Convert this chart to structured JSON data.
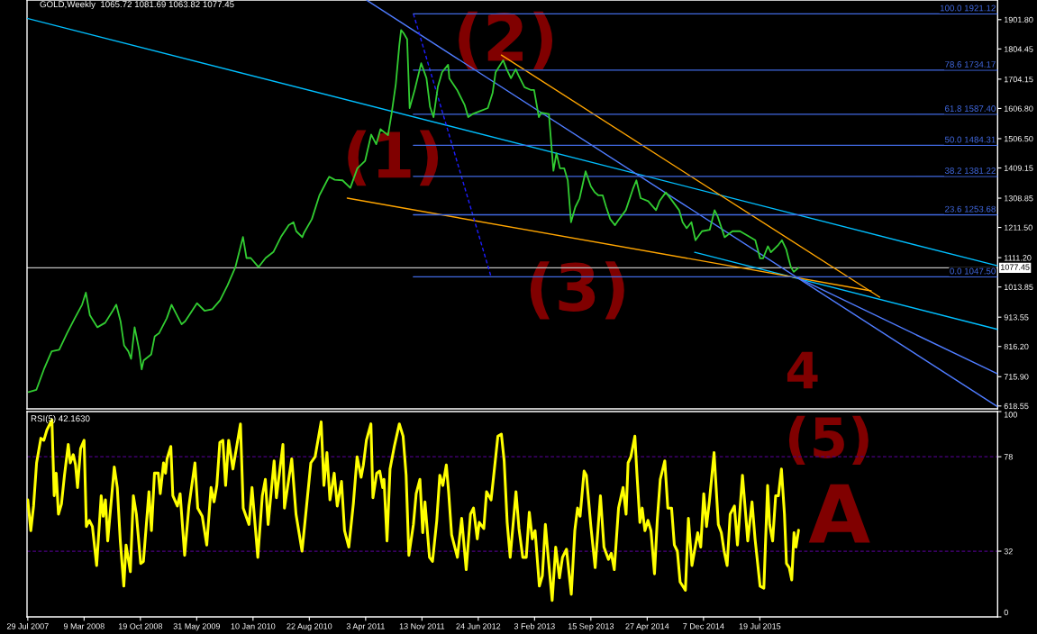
{
  "chart_data": [
    {
      "type": "line",
      "title": "GOLD,Weekly  1065.72 1081.69 1063.82 1077.45",
      "xlim": [
        "2007-07-26",
        "2018-02-19"
      ],
      "ylim": [
        609,
        1967
      ],
      "yticks": [
        618.55,
        {
          "value": 715.9,
          "label": "715.90"
        },
        {
          "value": 816.2,
          "label": "816.20"
        },
        913.55,
        1013.85,
        {
          "value": 1111.2,
          "label": "1111.20"
        },
        {
          "value": 1211.5,
          "label": "1211.50"
        },
        1308.85,
        1409.15,
        {
          "value": 1506.5,
          "label": "1506.50"
        },
        {
          "value": 1606.8,
          "label": "1606.80"
        },
        1704.15,
        1804.45,
        {
          "value": 1901.8,
          "label": "1901.80"
        }
      ],
      "tick_labels": "y",
      "series": [
        {
          "color": "#32cd32",
          "x": [
            "2007-08-01",
            "2007-09-01",
            "2007-10-01",
            "2007-11-01",
            "2007-12-01",
            "2008-01-01",
            "2008-02-01",
            "2008-03-01",
            "2008-03-16",
            "2008-04-01",
            "2008-05-01",
            "2008-06-01",
            "2008-07-01",
            "2008-07-15",
            "2008-08-01",
            "2008-08-15",
            "2008-09-01",
            "2008-09-12",
            "2008-09-26",
            "2008-10-15",
            "2008-10-24",
            "2008-11-01",
            "2008-12-01",
            "2008-12-15",
            "2009-01-01",
            "2009-02-01",
            "2009-02-20",
            "2009-03-01",
            "2009-04-01",
            "2009-04-15",
            "2009-05-01",
            "2009-06-01",
            "2009-07-01",
            "2009-08-01",
            "2009-09-01",
            "2009-10-01",
            "2009-11-01",
            "2009-12-01",
            "2009-12-15",
            "2010-01-01",
            "2010-02-01",
            "2010-03-01",
            "2010-04-01",
            "2010-05-01",
            "2010-06-01",
            "2010-06-20",
            "2010-07-01",
            "2010-07-25",
            "2010-08-01",
            "2010-09-01",
            "2010-10-01",
            "2010-11-01",
            "2010-11-09",
            "2010-12-01",
            "2011-01-01",
            "2011-02-01",
            "2011-03-01",
            "2011-04-01",
            "2011-04-25",
            "2011-05-15",
            "2011-06-01",
            "2011-07-01",
            "2011-07-15",
            "2011-08-01",
            "2011-08-15",
            "2011-08-22",
            "2011-09-01",
            "2011-09-15",
            "2011-09-25",
            "2011-10-15",
            "2011-11-10",
            "2011-12-01",
            "2011-12-15",
            "2011-12-29",
            "2012-01-15",
            "2012-02-01",
            "2012-02-25",
            "2012-03-01",
            "2012-04-01",
            "2012-05-01",
            "2012-05-15",
            "2012-06-01",
            "2012-07-01",
            "2012-08-01",
            "2012-08-20",
            "2012-09-01",
            "2012-10-01",
            "2012-10-15",
            "2012-11-01",
            "2012-11-20",
            "2012-12-01",
            "2012-12-25",
            "2013-01-20",
            "2013-02-01",
            "2013-02-20",
            "2013-03-01",
            "2013-04-01",
            "2013-04-19",
            "2013-05-01",
            "2013-05-15",
            "2013-06-01",
            "2013-06-15",
            "2013-06-28",
            "2013-07-15",
            "2013-08-01",
            "2013-08-25",
            "2013-09-15",
            "2013-10-01",
            "2013-10-15",
            "2013-11-01",
            "2013-11-15",
            "2013-12-01",
            "2013-12-20",
            "2014-01-01",
            "2014-02-01",
            "2014-03-01",
            "2014-03-15",
            "2014-04-01",
            "2014-05-01",
            "2014-06-01",
            "2014-06-15",
            "2014-07-10",
            "2014-08-01",
            "2014-09-01",
            "2014-09-15",
            "2014-10-01",
            "2014-10-20",
            "2014-11-05",
            "2014-12-01",
            "2015-01-01",
            "2015-01-20",
            "2015-02-01",
            "2015-03-01",
            "2015-04-01",
            "2015-05-01",
            "2015-06-01",
            "2015-07-01",
            "2015-07-20",
            "2015-08-01",
            "2015-08-20",
            "2015-09-01",
            "2015-10-01",
            "2015-10-15",
            "2015-11-01",
            "2015-11-10",
            "2015-11-20",
            "2015-12-01",
            "2015-12-20"
          ],
          "values": [
            665,
            672,
            740,
            800,
            805,
            860,
            910,
            955,
            995,
            920,
            880,
            895,
            935,
            955,
            900,
            820,
            800,
            775,
            880,
            800,
            740,
            770,
            790,
            850,
            860,
            910,
            955,
            940,
            890,
            900,
            920,
            960,
            935,
            940,
            970,
            1020,
            1080,
            1180,
            1110,
            1110,
            1080,
            1110,
            1130,
            1180,
            1219,
            1229,
            1199,
            1179,
            1194,
            1239,
            1318,
            1368,
            1380,
            1370,
            1368,
            1343,
            1408,
            1433,
            1520,
            1488,
            1538,
            1518,
            1588,
            1688,
            1817,
            1867,
            1857,
            1837,
            1608,
            1668,
            1757,
            1707,
            1613,
            1578,
            1678,
            1727,
            1752,
            1707,
            1668,
            1618,
            1578,
            1588,
            1598,
            1608,
            1658,
            1727,
            1767,
            1737,
            1707,
            1737,
            1717,
            1677,
            1668,
            1668,
            1578,
            1593,
            1588,
            1400,
            1458,
            1408,
            1408,
            1368,
            1229,
            1279,
            1308,
            1398,
            1348,
            1328,
            1318,
            1318,
            1279,
            1239,
            1219,
            1234,
            1269,
            1339,
            1368,
            1309,
            1299,
            1269,
            1299,
            1328,
            1304,
            1269,
            1229,
            1209,
            1229,
            1169,
            1199,
            1204,
            1269,
            1249,
            1179,
            1199,
            1199,
            1184,
            1169,
            1109,
            1109,
            1149,
            1129,
            1154,
            1169,
            1139,
            1109,
            1079,
            1064,
            1077.45
          ]
        },
        {
          "color": "#00bfff",
          "x": [
            "2007-07-26",
            "2018-02-19"
          ],
          "values": [
            1906,
            1084
          ]
        },
        {
          "color": "#00bfff",
          "x": [
            "2014-11-02",
            "2018-02-19"
          ],
          "values": [
            1129,
            873
          ]
        },
        {
          "color": "#ffa500",
          "x": [
            "2012-09-24",
            "2016-11-07"
          ],
          "values": [
            1784,
            980
          ]
        },
        {
          "color": "#ffa500",
          "x": [
            "2011-01-20",
            "2016-10-04"
          ],
          "values": [
            1309,
            1001
          ]
        },
        {
          "color": "#4f7cff",
          "x": [
            "2011-04-08",
            "2018-02-19"
          ],
          "values": [
            1966,
            616
          ]
        },
        {
          "color": "#4f7cff",
          "x": [
            "2015-12-06",
            "2018-02-19"
          ],
          "values": [
            1048,
            725
          ]
        },
        {
          "color": "#1e1eff",
          "line_style": "dashed",
          "x": [
            "2011-10-10",
            "2012-08-14"
          ],
          "values": [
            1921.12,
            1047.5
          ]
        },
        {
          "name": "100.0 1921.12",
          "color": "#4169e1",
          "x": [
            "2011-10-10",
            "2018-02-19"
          ],
          "values": [
            1921.12,
            1921.12
          ]
        },
        {
          "name": "78.6 1734.17",
          "color": "#4169e1",
          "x": [
            "2011-10-10",
            "2018-02-19"
          ],
          "values": [
            1734.17,
            1734.17
          ]
        },
        {
          "name": "61.8 1587.40",
          "color": "#4169e1",
          "x": [
            "2011-10-10",
            "2018-02-19"
          ],
          "values": [
            1587.4,
            1587.4
          ]
        },
        {
          "name": "50.0 1484.31",
          "color": "#4169e1",
          "x": [
            "2011-10-10",
            "2018-02-19"
          ],
          "values": [
            1484.31,
            1484.31
          ]
        },
        {
          "name": "38.2 1381.22",
          "color": "#4169e1",
          "x": [
            "2011-10-10",
            "2018-02-19"
          ],
          "values": [
            1381.22,
            1381.22
          ]
        },
        {
          "name": "23.6 1253.68",
          "color": "#4169e1",
          "x": [
            "2011-10-10",
            "2018-02-19"
          ],
          "values": [
            1253.68,
            1253.68
          ]
        },
        {
          "name": "0.0 1047.50",
          "color": "#4169e1",
          "x": [
            "2011-10-10",
            "2018-02-19"
          ],
          "values": [
            1047.5,
            1047.5
          ]
        }
      ],
      "ref_lines": [
        {
          "axis": "y",
          "value": 1077.45,
          "label": "1077.45",
          "color": "#c0c0c0"
        }
      ],
      "annotations": [
        "(1)",
        "(2)",
        "(3)",
        "4"
      ]
    },
    {
      "type": "line",
      "title": "RSI(5) 42.1630",
      "xlim": [
        "2007-07-26",
        "2018-02-19"
      ],
      "ylim": [
        0,
        100
      ],
      "xticks": [
        {
          "value": "2007-07-29",
          "label": "29 Jul 2007"
        },
        {
          "value": "2008-03-09",
          "label": "9 Mar 2008"
        },
        {
          "value": "2008-10-19",
          "label": "19 Oct 2008"
        },
        {
          "value": "2009-05-31",
          "label": "31 May 2009"
        },
        {
          "value": "2010-01-10",
          "label": "10 Jan 2010"
        },
        {
          "value": "2010-08-22",
          "label": "22 Aug 2010"
        },
        {
          "value": "2011-04-03",
          "label": "3 Apr 2011"
        },
        {
          "value": "2011-11-13",
          "label": "13 Nov 2011"
        },
        {
          "value": "2012-06-24",
          "label": "24 Jun 2012"
        },
        {
          "value": "2013-02-03",
          "label": "3 Feb 2013"
        },
        {
          "value": "2013-09-15",
          "label": "15 Sep 2013"
        },
        {
          "value": "2014-04-27",
          "label": "27 Apr 2014"
        },
        {
          "value": "2014-12-07",
          "label": "7 Dec 2014"
        },
        {
          "value": "2015-07-19",
          "label": "19 Jul 2015"
        }
      ],
      "yticks": [
        0,
        32,
        78,
        100
      ],
      "series": [
        {
          "color": "#ffff00",
          "x": [
            "2007-07-29",
            "2007-08-10",
            "2007-08-21",
            "2007-09-02",
            "2007-09-19",
            "2007-10-01",
            "2007-10-13",
            "2007-11-02",
            "2007-11-11",
            "2007-11-19",
            "2007-11-28",
            "2007-12-10",
            "2007-12-22",
            "2008-01-06",
            "2008-01-14",
            "2008-01-26",
            "2008-02-04",
            "2008-02-12",
            "2008-02-24",
            "2008-03-09",
            "2008-03-18",
            "2008-03-30",
            "2008-04-11",
            "2008-04-28",
            "2008-05-16",
            "2008-05-24",
            "2008-06-02",
            "2008-06-11",
            "2008-07-07",
            "2008-07-19",
            "2008-07-31",
            "2008-08-14",
            "2008-08-23",
            "2008-09-09",
            "2008-09-21",
            "2008-10-03",
            "2008-10-20",
            "2008-10-31",
            "2008-11-22",
            "2008-12-02",
            "2008-12-14",
            "2008-12-29",
            "2009-01-06",
            "2009-01-19",
            "2009-01-27",
            "2009-02-02",
            "2009-02-17",
            "2009-02-25",
            "2009-03-15",
            "2009-03-26",
            "2009-04-13",
            "2009-04-30",
            "2009-05-24",
            "2009-06-04",
            "2009-06-22",
            "2009-07-10",
            "2009-07-27",
            "2009-08-08",
            "2009-08-19",
            "2009-08-31",
            "2009-09-12",
            "2009-09-23",
            "2009-10-05",
            "2009-10-22",
            "2009-11-21",
            "2009-12-02",
            "2009-12-25",
            "2010-01-06",
            "2010-01-29",
            "2010-02-16",
            "2010-02-28",
            "2010-03-11",
            "2010-04-04",
            "2010-04-13",
            "2010-05-09",
            "2010-05-15",
            "2010-06-01",
            "2010-06-13",
            "2010-06-30",
            "2010-07-24",
            "2010-08-28",
            "2010-09-14",
            "2010-10-08",
            "2010-10-19",
            "2010-10-31",
            "2010-11-12",
            "2010-11-29",
            "2010-12-11",
            "2010-12-28",
            "2011-01-09",
            "2011-01-26",
            "2011-02-13",
            "2011-02-28",
            "2011-03-16",
            "2011-03-25",
            "2011-04-06",
            "2011-04-24",
            "2011-05-02",
            "2011-05-17",
            "2011-05-29",
            "2011-06-10",
            "2011-06-15",
            "2011-06-27",
            "2011-07-09",
            "2011-07-26",
            "2011-08-15",
            "2011-08-30",
            "2011-09-11",
            "2011-09-22",
            "2011-10-10",
            "2011-10-21",
            "2011-11-05",
            "2011-11-16",
            "2011-11-25",
            "2011-12-13",
            "2011-12-25",
            "2012-01-11",
            "2012-01-23",
            "2012-02-04",
            "2012-02-18",
            "2012-02-27",
            "2012-03-10",
            "2012-04-02",
            "2012-04-19",
            "2012-05-07",
            "2012-05-24",
            "2012-06-05",
            "2012-06-20",
            "2012-06-28",
            "2012-07-16",
            "2012-07-27",
            "2012-08-14",
            "2012-08-22",
            "2012-09-10",
            "2012-09-24",
            "2012-10-05",
            "2012-10-17",
            "2012-10-29",
            "2012-11-21",
            "2012-12-03",
            "2012-12-18",
            "2013-01-01",
            "2013-01-13",
            "2013-01-25",
            "2013-02-05",
            "2013-02-22",
            "2013-03-06",
            "2013-03-18",
            "2013-03-30",
            "2013-04-14",
            "2013-04-28",
            "2013-05-13",
            "2013-05-25",
            "2013-06-10",
            "2013-06-29",
            "2013-07-13",
            "2013-07-24",
            "2013-08-03",
            "2013-08-19",
            "2013-08-28",
            "2013-09-15",
            "2013-10-02",
            "2013-10-23",
            "2013-11-06",
            "2013-11-24",
            "2013-12-05",
            "2013-12-17",
            "2014-01-03",
            "2014-01-21",
            "2014-02-02",
            "2014-02-10",
            "2014-02-21",
            "2014-03-09",
            "2014-03-17",
            "2014-03-29",
            "2014-04-07",
            "2014-04-18",
            "2014-04-30",
            "2014-05-12",
            "2014-05-26",
            "2014-06-06",
            "2014-06-18",
            "2014-07-06",
            "2014-07-18",
            "2014-08-02",
            "2014-08-13",
            "2014-08-25",
            "2014-09-05",
            "2014-09-26",
            "2014-10-08",
            "2014-10-22",
            "2014-11-14",
            "2014-11-26",
            "2014-12-08",
            "2014-12-19",
            "2014-12-31",
            "2015-01-18",
            "2015-02-04",
            "2015-02-16",
            "2015-02-27",
            "2015-03-11",
            "2015-03-23",
            "2015-04-09",
            "2015-04-21",
            "2015-05-11",
            "2015-05-23",
            "2015-06-01",
            "2015-06-18",
            "2015-06-30",
            "2015-07-20",
            "2015-08-04",
            "2015-08-19",
            "2015-08-27",
            "2015-09-08",
            "2015-09-20",
            "2015-10-01",
            "2015-10-13",
            "2015-10-25",
            "2015-11-02",
            "2015-11-13",
            "2015-11-23",
            "2015-12-02",
            "2015-12-10",
            "2015-12-20"
          ],
          "values": [
            57,
            42,
            54,
            75,
            87,
            86,
            91,
            96,
            59,
            70,
            50,
            55,
            69,
            84,
            75,
            79,
            74,
            63,
            82,
            86,
            44,
            47,
            44,
            25,
            59,
            49,
            57,
            37,
            73,
            63,
            37,
            15,
            35,
            22,
            59,
            50,
            26,
            27,
            61,
            42,
            70,
            70,
            60,
            75,
            70,
            77,
            83,
            59,
            54,
            60,
            30,
            54,
            75,
            53,
            49,
            35,
            63,
            56,
            64,
            85,
            86,
            64,
            86,
            72,
            94,
            53,
            45,
            63,
            29,
            59,
            67,
            45,
            76,
            58,
            84,
            53,
            67,
            77,
            50,
            32,
            75,
            78,
            95,
            64,
            80,
            57,
            70,
            54,
            66,
            42,
            34,
            55,
            78,
            68,
            74,
            86,
            94,
            58,
            70,
            71,
            63,
            67,
            37,
            72,
            83,
            94,
            88,
            69,
            30,
            45,
            60,
            67,
            41,
            56,
            29,
            27,
            47,
            69,
            64,
            74,
            61,
            40,
            29,
            48,
            23,
            50,
            53,
            38,
            46,
            43,
            61,
            57,
            66,
            88,
            89,
            76,
            46,
            29,
            61,
            43,
            29,
            29,
            51,
            38,
            42,
            15,
            20,
            45,
            28,
            8,
            34,
            19,
            29,
            33,
            11,
            42,
            53,
            49,
            71,
            69,
            44,
            24,
            59,
            34,
            28,
            31,
            23,
            53,
            63,
            50,
            75,
            78,
            88,
            70,
            46,
            53,
            42,
            47,
            42,
            21,
            47,
            67,
            76,
            53,
            53,
            35,
            32,
            17,
            13,
            48,
            25,
            41,
            34,
            60,
            44,
            57,
            80,
            45,
            41,
            32,
            25,
            50,
            54,
            35,
            69,
            51,
            37,
            56,
            38,
            15,
            14,
            64,
            45,
            37,
            59,
            59,
            72,
            50,
            26,
            24,
            18,
            41,
            34,
            42.163
          ]
        }
      ],
      "ref_lines": [
        {
          "axis": "y",
          "value": 78,
          "color": "#4b0082",
          "line_style": "dashed"
        },
        {
          "axis": "y",
          "value": 32,
          "color": "#4b0082",
          "line_style": "dashed"
        }
      ],
      "annotations": [
        "(5)",
        "A"
      ]
    }
  ]
}
